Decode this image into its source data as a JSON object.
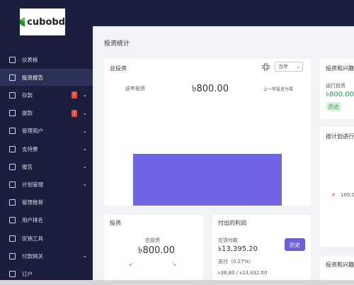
{
  "logo": "cubobd",
  "sidebar": {
    "items": [
      "仪表板",
      "投资报告",
      "存款",
      "提款",
      "管理用户",
      "支持票",
      "报告",
      "计划管理",
      "管理推荐",
      "用户排名",
      "促销工具",
      "付款网关",
      "订户"
    ],
    "badge": "!"
  },
  "page_title": "投资统计",
  "total_card": {
    "title": "总投资",
    "period": "当年",
    "left_label": "这年投资",
    "amount": "৳800.00",
    "right_note": "上一年投资为零"
  },
  "interest_card": {
    "title": "投资和兴趣",
    "label": "运行投资",
    "amount": "৳800.00",
    "button": "历史"
  },
  "plan_card": {
    "title": "按计划进行",
    "value": "100.0"
  },
  "invest_card": {
    "title": "投资",
    "label": "总投资",
    "amount": "৳800.00"
  },
  "profit_card": {
    "title": "付出的利润",
    "due_label": "应该付款",
    "due_amount": "৳13,395.20",
    "button": "历史",
    "paid_label": "支付（0.27%）",
    "paid_amount": "৳36.80 / ৳13,432.00"
  },
  "bottom_card": {
    "title": "投资和兴趣"
  }
}
